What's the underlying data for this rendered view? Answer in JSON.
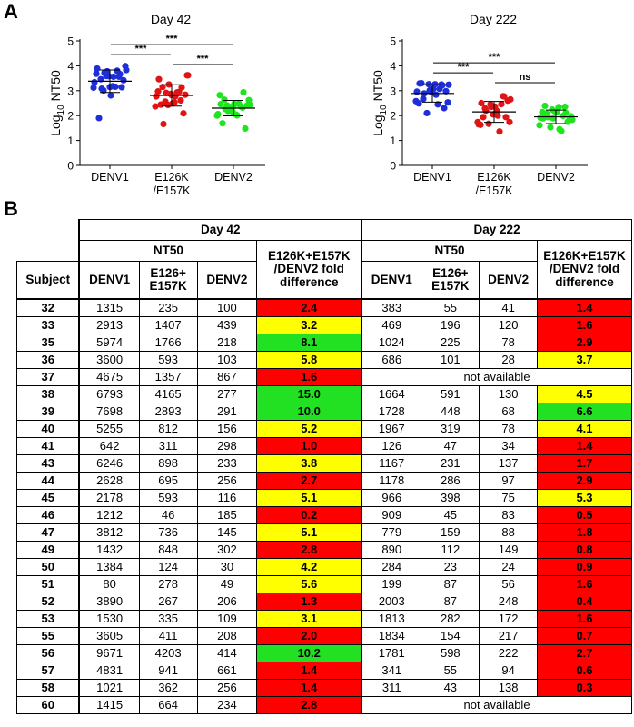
{
  "panel_labels": {
    "a": "A",
    "b": "B"
  },
  "colors": {
    "denv1": "#1f2fd8",
    "e126k": "#e01414",
    "denv2": "#1ee61e",
    "fold_red": "#ff0000",
    "fold_yellow": "#ffff00",
    "fold_green": "#22e022"
  },
  "chart_data": [
    {
      "type": "scatter",
      "title": "Day 42",
      "ylabel_base": "Log",
      "ylabel_sub": "10",
      "ylabel_rest": " NT50",
      "ylim": [
        0,
        5
      ],
      "yticks": [
        0,
        1,
        2,
        3,
        4,
        5
      ],
      "categories": [
        {
          "line1": "DENV1",
          "line2": ""
        },
        {
          "line1": "E126K",
          "line2": "/E157K"
        },
        {
          "line1": "DENV2",
          "line2": ""
        }
      ],
      "series": [
        {
          "values": [
            3.12,
            3.46,
            3.78,
            3.56,
            3.67,
            3.83,
            3.89,
            3.72,
            2.81,
            3.8,
            3.42,
            3.34,
            3.08,
            3.58,
            3.16,
            3.14,
            1.9,
            3.59,
            3.18,
            3.56,
            3.99,
            3.68,
            3.01,
            3.15
          ]
        },
        {
          "values": [
            2.37,
            3.15,
            3.25,
            2.77,
            3.13,
            3.62,
            3.46,
            2.91,
            2.49,
            2.95,
            2.84,
            2.77,
            1.66,
            2.87,
            2.93,
            2.09,
            2.44,
            2.43,
            2.53,
            2.61,
            3.62,
            2.97,
            2.56,
            2.82
          ]
        },
        {
          "values": [
            2.0,
            2.64,
            2.34,
            2.01,
            2.94,
            2.44,
            2.46,
            2.19,
            2.47,
            2.37,
            2.41,
            2.06,
            2.27,
            2.16,
            2.48,
            1.48,
            1.69,
            2.31,
            2.04,
            2.32,
            2.62,
            2.82,
            2.41,
            2.37
          ]
        }
      ],
      "means": [
        3.38,
        2.81,
        2.3
      ],
      "sds": [
        0.45,
        0.43,
        0.31
      ],
      "comparisons": [
        {
          "from": 0,
          "to": 1,
          "level": 4.45,
          "label": "***"
        },
        {
          "from": 0,
          "to": 2,
          "level": 4.85,
          "label": "***"
        },
        {
          "from": 1,
          "to": 2,
          "level": 4.05,
          "label": "***"
        }
      ]
    },
    {
      "type": "scatter",
      "title": "Day 222",
      "ylabel_base": "Log",
      "ylabel_sub": "10",
      "ylabel_rest": " NT50",
      "ylim": [
        0,
        5
      ],
      "yticks": [
        0,
        1,
        2,
        3,
        4,
        5
      ],
      "categories": [
        {
          "line1": "DENV1",
          "line2": ""
        },
        {
          "line1": "E126K",
          "line2": "/E157K"
        },
        {
          "line1": "DENV2",
          "line2": ""
        }
      ],
      "series": [
        {
          "values": [
            2.58,
            2.67,
            3.01,
            2.84,
            3.22,
            3.24,
            3.29,
            2.1,
            3.07,
            3.07,
            2.98,
            2.96,
            2.89,
            2.95,
            2.45,
            2.3,
            3.3,
            3.26,
            3.26,
            3.25,
            2.53,
            2.49
          ]
        },
        {
          "values": [
            1.74,
            2.29,
            2.35,
            2.0,
            2.77,
            2.65,
            2.5,
            1.67,
            2.36,
            2.46,
            2.6,
            1.65,
            2.2,
            2.05,
            1.36,
            1.94,
            1.94,
            2.45,
            2.19,
            2.78,
            1.74,
            1.63
          ]
        },
        {
          "values": [
            1.61,
            2.08,
            1.89,
            1.45,
            2.11,
            1.83,
            1.89,
            1.53,
            2.14,
            1.99,
            1.88,
            1.92,
            1.94,
            2.17,
            1.38,
            1.75,
            2.39,
            2.24,
            2.34,
            2.35,
            1.97,
            2.14
          ]
        }
      ],
      "means": [
        2.89,
        2.15,
        1.95
      ],
      "sds": [
        0.35,
        0.42,
        0.27
      ],
      "comparisons": [
        {
          "from": 0,
          "to": 1,
          "level": 3.72,
          "label": "***"
        },
        {
          "from": 0,
          "to": 2,
          "level": 4.12,
          "label": "***"
        },
        {
          "from": 1,
          "to": 2,
          "level": 3.32,
          "label": "ns"
        }
      ]
    }
  ],
  "table": {
    "day42": "Day 42",
    "day222": "Day 222",
    "nt50": "NT50",
    "fold_line1": "E126K+E157K",
    "fold_line2": "/DENV2 fold",
    "fold_line3": "difference",
    "subject": "Subject",
    "denv1": "DENV1",
    "e126_line1": "E126+",
    "e126_line2": "E157K",
    "denv2": "DENV2",
    "not_available": "not available",
    "rows": [
      {
        "subject": "32",
        "d42": [
          "1315",
          "235",
          "100"
        ],
        "f42": "2.4",
        "c42": "red",
        "d222": [
          "383",
          "55",
          "41"
        ],
        "f222": "1.4",
        "c222": "red"
      },
      {
        "subject": "33",
        "d42": [
          "2913",
          "1407",
          "439"
        ],
        "f42": "3.2",
        "c42": "yellow",
        "d222": [
          "469",
          "196",
          "120"
        ],
        "f222": "1.6",
        "c222": "red"
      },
      {
        "subject": "35",
        "d42": [
          "5974",
          "1766",
          "218"
        ],
        "f42": "8.1",
        "c42": "green",
        "d222": [
          "1024",
          "225",
          "78"
        ],
        "f222": "2.9",
        "c222": "red"
      },
      {
        "subject": "36",
        "d42": [
          "3600",
          "593",
          "103"
        ],
        "f42": "5.8",
        "c42": "yellow",
        "d222": [
          "686",
          "101",
          "28"
        ],
        "f222": "3.7",
        "c222": "yellow"
      },
      {
        "subject": "37",
        "d42": [
          "4675",
          "1357",
          "867"
        ],
        "f42": "1.6",
        "c42": "red",
        "na": true
      },
      {
        "subject": "38",
        "d42": [
          "6793",
          "4165",
          "277"
        ],
        "f42": "15.0",
        "c42": "green",
        "d222": [
          "1664",
          "591",
          "130"
        ],
        "f222": "4.5",
        "c222": "yellow"
      },
      {
        "subject": "39",
        "d42": [
          "7698",
          "2893",
          "291"
        ],
        "f42": "10.0",
        "c42": "green",
        "d222": [
          "1728",
          "448",
          "68"
        ],
        "f222": "6.6",
        "c222": "green"
      },
      {
        "subject": "40",
        "d42": [
          "5255",
          "812",
          "156"
        ],
        "f42": "5.2",
        "c42": "yellow",
        "d222": [
          "1967",
          "319",
          "78"
        ],
        "f222": "4.1",
        "c222": "yellow"
      },
      {
        "subject": "41",
        "d42": [
          "642",
          "311",
          "298"
        ],
        "f42": "1.0",
        "c42": "red",
        "d222": [
          "126",
          "47",
          "34"
        ],
        "f222": "1.4",
        "c222": "red"
      },
      {
        "subject": "43",
        "d42": [
          "6246",
          "898",
          "233"
        ],
        "f42": "3.8",
        "c42": "yellow",
        "d222": [
          "1167",
          "231",
          "137"
        ],
        "f222": "1.7",
        "c222": "red"
      },
      {
        "subject": "44",
        "d42": [
          "2628",
          "695",
          "256"
        ],
        "f42": "2.7",
        "c42": "red",
        "d222": [
          "1178",
          "286",
          "97"
        ],
        "f222": "2.9",
        "c222": "red"
      },
      {
        "subject": "45",
        "d42": [
          "2178",
          "593",
          "116"
        ],
        "f42": "5.1",
        "c42": "yellow",
        "d222": [
          "966",
          "398",
          "75"
        ],
        "f222": "5.3",
        "c222": "yellow"
      },
      {
        "subject": "46",
        "d42": [
          "1212",
          "46",
          "185"
        ],
        "f42": "0.2",
        "c42": "red",
        "d222": [
          "909",
          "45",
          "83"
        ],
        "f222": "0.5",
        "c222": "red"
      },
      {
        "subject": "47",
        "d42": [
          "3812",
          "736",
          "145"
        ],
        "f42": "5.1",
        "c42": "yellow",
        "d222": [
          "779",
          "159",
          "88"
        ],
        "f222": "1.8",
        "c222": "red"
      },
      {
        "subject": "49",
        "d42": [
          "1432",
          "848",
          "302"
        ],
        "f42": "2.8",
        "c42": "red",
        "d222": [
          "890",
          "112",
          "149"
        ],
        "f222": "0.8",
        "c222": "red"
      },
      {
        "subject": "50",
        "d42": [
          "1384",
          "124",
          "30"
        ],
        "f42": "4.2",
        "c42": "yellow",
        "d222": [
          "284",
          "23",
          "24"
        ],
        "f222": "0.9",
        "c222": "red"
      },
      {
        "subject": "51",
        "d42": [
          "80",
          "278",
          "49"
        ],
        "f42": "5.6",
        "c42": "yellow",
        "d222": [
          "199",
          "87",
          "56"
        ],
        "f222": "1.6",
        "c222": "red"
      },
      {
        "subject": "52",
        "d42": [
          "3890",
          "267",
          "206"
        ],
        "f42": "1.3",
        "c42": "red",
        "d222": [
          "2003",
          "87",
          "248"
        ],
        "f222": "0.4",
        "c222": "red"
      },
      {
        "subject": "53",
        "d42": [
          "1530",
          "335",
          "109"
        ],
        "f42": "3.1",
        "c42": "yellow",
        "d222": [
          "1813",
          "282",
          "172"
        ],
        "f222": "1.6",
        "c222": "red"
      },
      {
        "subject": "55",
        "d42": [
          "3605",
          "411",
          "208"
        ],
        "f42": "2.0",
        "c42": "red",
        "d222": [
          "1834",
          "154",
          "217"
        ],
        "f222": "0.7",
        "c222": "red"
      },
      {
        "subject": "56",
        "d42": [
          "9671",
          "4203",
          "414"
        ],
        "f42": "10.2",
        "c42": "green",
        "d222": [
          "1781",
          "598",
          "222"
        ],
        "f222": "2.7",
        "c222": "red"
      },
      {
        "subject": "57",
        "d42": [
          "4831",
          "941",
          "661"
        ],
        "f42": "1.4",
        "c42": "red",
        "d222": [
          "341",
          "55",
          "94"
        ],
        "f222": "0.6",
        "c222": "red"
      },
      {
        "subject": "58",
        "d42": [
          "1021",
          "362",
          "256"
        ],
        "f42": "1.4",
        "c42": "red",
        "d222": [
          "311",
          "43",
          "138"
        ],
        "f222": "0.3",
        "c222": "red"
      },
      {
        "subject": "60",
        "d42": [
          "1415",
          "664",
          "234"
        ],
        "f42": "2.8",
        "c42": "red",
        "na": true
      }
    ]
  }
}
